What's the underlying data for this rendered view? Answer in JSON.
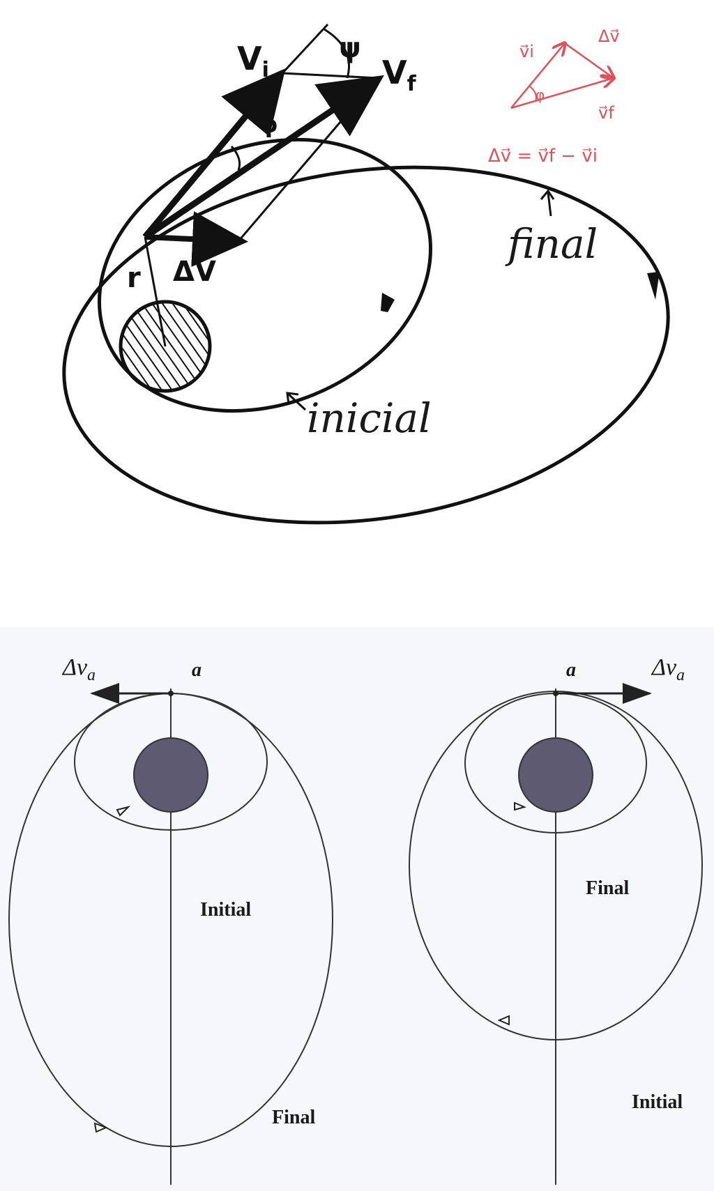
{
  "top_diagram": {
    "vi_label": "V",
    "vi_sub": "i",
    "vf_label": "V",
    "vf_sub": "f",
    "psi_label": "ψ",
    "phi_label": "φ",
    "dv_label": "ΔV",
    "r_label": "r",
    "final_label": "final",
    "initial_label": "inicial",
    "note": {
      "vi": "v⃗i",
      "dv": "Δv⃗",
      "vf": "v⃗f",
      "phi": "φ",
      "equation": "Δv⃗ = v⃗f − v⃗i"
    },
    "colors": {
      "ink": "#111111",
      "note": "#e0505a"
    }
  },
  "bottom_diagrams": [
    {
      "dv_label": "Δv",
      "dv_sub": "a",
      "point_label": "a",
      "inner_label": "Initial",
      "outer_label": "Final"
    },
    {
      "dv_label": "Δv",
      "dv_sub": "a",
      "point_label": "a",
      "inner_label": "Final",
      "outer_label": "Initial"
    }
  ],
  "colors": {
    "planet": "#5d5a72",
    "line": "#333333",
    "panel_bg": "#f6f7fb"
  }
}
